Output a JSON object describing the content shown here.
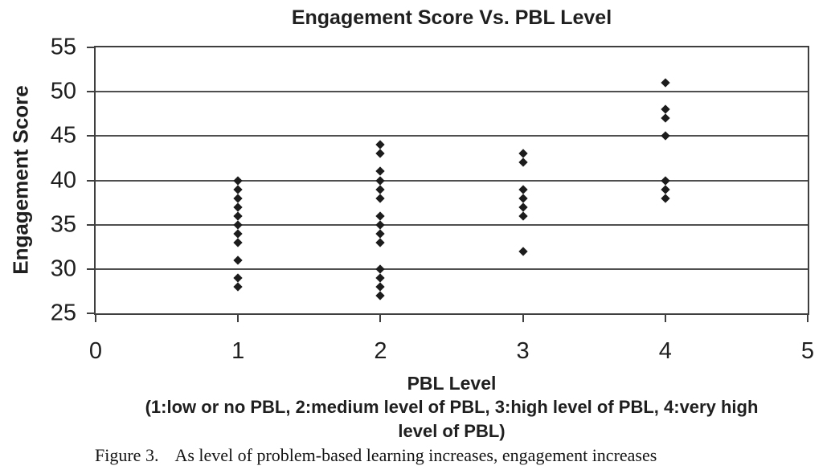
{
  "title": "Engagement Score Vs. PBL Level",
  "y_axis": {
    "label": "Engagement Score",
    "ticks": [
      55,
      50,
      45,
      40,
      35,
      30,
      25
    ],
    "min": 25,
    "max": 55
  },
  "x_axis": {
    "label": "PBL Level",
    "sublabel": "(1:low or no PBL, 2:medium level of PBL, 3:high level of PBL, 4:very high level of PBL)",
    "ticks": [
      0,
      1,
      2,
      3,
      4,
      5
    ],
    "min": 0,
    "max": 5
  },
  "caption": {
    "label": "Figure 3.",
    "text": "As level of problem-based learning increases, engagement increases"
  },
  "colors": {
    "marker": "#1c1c1c",
    "gridline": "#4f4f4f",
    "axis": "#3f3f3f",
    "text": "#1f1f1f"
  },
  "chart_data": {
    "type": "scatter",
    "title": "Engagement Score Vs. PBL Level",
    "xlabel": "PBL Level (1:low or no PBL, 2:medium level of PBL, 3:high level of PBL, 4:very high level of PBL)",
    "ylabel": "Engagement Score",
    "xlim": [
      0,
      5
    ],
    "ylim": [
      25,
      55
    ],
    "grid": "horizontal-only",
    "legend": "none",
    "marker": "diamond",
    "series": [
      {
        "name": "Engagement scores",
        "points": [
          {
            "x": 1,
            "y_values": [
              40,
              39,
              38,
              37,
              36,
              35,
              34,
              33,
              31,
              29,
              28
            ]
          },
          {
            "x": 2,
            "y_values": [
              44,
              43,
              41,
              40,
              39,
              38,
              36,
              35,
              34,
              33,
              30,
              29,
              28,
              27
            ]
          },
          {
            "x": 3,
            "y_values": [
              43,
              42,
              39,
              38,
              37,
              36,
              32
            ]
          },
          {
            "x": 4,
            "y_values": [
              51,
              48,
              47,
              45,
              40,
              39,
              38
            ]
          }
        ]
      }
    ]
  }
}
